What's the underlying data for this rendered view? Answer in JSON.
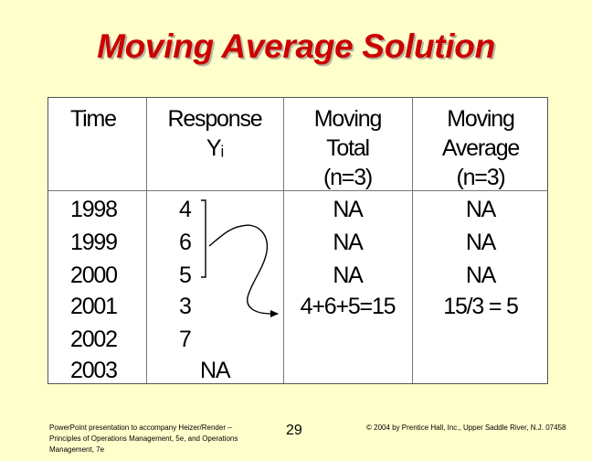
{
  "slide": {
    "title": "Moving Average Solution",
    "page_number": "29",
    "footer_left": "PowerPoint presentation to accompany Heizer/Render – Principles of Operations Management, 5e, and Operations Management, 7e",
    "footer_right": "© 2004 by Prentice Hall, Inc., Upper Saddle River, N.J. 07458"
  },
  "table": {
    "headers": {
      "time": "Time",
      "response": [
        "Response",
        "Yᵢ"
      ],
      "moving_total": [
        "Moving",
        "Total",
        "(n=3)"
      ],
      "moving_average": [
        "Moving",
        "Average",
        "(n=3)"
      ]
    },
    "rows": [
      {
        "time": "1998",
        "response": "4",
        "total": "NA",
        "average": "NA"
      },
      {
        "time": "1999",
        "response": "6",
        "total": "NA",
        "average": "NA"
      },
      {
        "time": "2000",
        "response": "5",
        "total": "NA",
        "average": "NA"
      },
      {
        "time": "2001",
        "response": "3",
        "total": "4+6+5=15",
        "average": "15/3 = 5"
      },
      {
        "time": "2002",
        "response": "7",
        "total": "",
        "average": ""
      },
      {
        "time": "2003",
        "response": "NA",
        "total": "",
        "average": ""
      }
    ]
  }
}
